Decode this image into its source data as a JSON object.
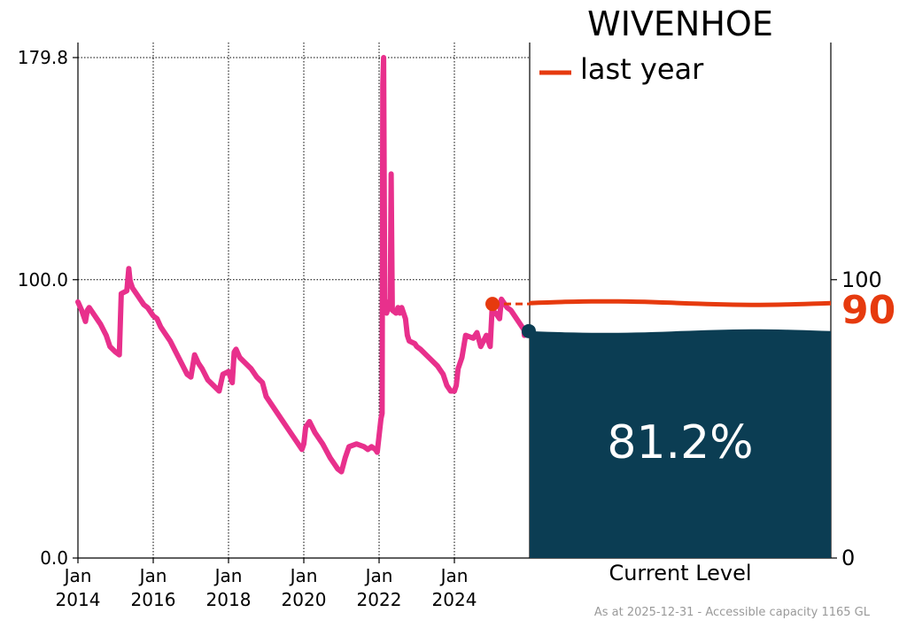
{
  "chart_data": {
    "type": "line",
    "title": "WIVENHOE",
    "y_ticks": [
      "0.0",
      "100.0",
      "179.8"
    ],
    "x_ticks": [
      {
        "line1": "Jan",
        "line2": "2014"
      },
      {
        "line1": "Jan",
        "line2": "2016"
      },
      {
        "line1": "Jan",
        "line2": "2018"
      },
      {
        "line1": "Jan",
        "line2": "2020"
      },
      {
        "line1": "Jan",
        "line2": "2022"
      },
      {
        "line1": "Jan",
        "line2": "2024"
      }
    ],
    "ylim": [
      0,
      179.8
    ],
    "xlim": [
      2014.0,
      2026.0
    ],
    "grid": true,
    "series": [
      {
        "color": "#e8308c",
        "x": [
          2014.0,
          2014.1,
          2014.2,
          2014.25,
          2014.3,
          2014.45,
          2014.6,
          2014.75,
          2014.85,
          2015.0,
          2015.1,
          2015.15,
          2015.3,
          2015.35,
          2015.38,
          2015.4,
          2015.45,
          2015.6,
          2015.75,
          2015.85,
          2015.95,
          2016.0,
          2016.1,
          2016.2,
          2016.3,
          2016.45,
          2016.6,
          2016.75,
          2016.9,
          2017.0,
          2017.1,
          2017.2,
          2017.3,
          2017.45,
          2017.6,
          2017.75,
          2017.85,
          2018.0,
          2018.1,
          2018.15,
          2018.2,
          2018.3,
          2018.45,
          2018.6,
          2018.75,
          2018.9,
          2019.0,
          2019.2,
          2019.4,
          2019.6,
          2019.8,
          2019.95,
          2020.0,
          2020.05,
          2020.15,
          2020.3,
          2020.5,
          2020.7,
          2020.9,
          2021.0,
          2021.1,
          2021.2,
          2021.4,
          2021.6,
          2021.7,
          2021.8,
          2021.9,
          2021.95,
          2022.0,
          2022.05,
          2022.08,
          2022.1,
          2022.12,
          2022.15,
          2022.2,
          2022.3,
          2022.32,
          2022.35,
          2022.45,
          2022.5,
          2022.55,
          2022.6,
          2022.7,
          2022.75,
          2022.8,
          2022.95,
          2023.0,
          2023.1,
          2023.25,
          2023.4,
          2023.55,
          2023.7,
          2023.8,
          2023.9,
          2024.0,
          2024.05,
          2024.1,
          2024.2,
          2024.3,
          2024.5,
          2024.6,
          2024.7,
          2024.85,
          2024.95,
          2025.0,
          2025.1,
          2025.2,
          2025.25,
          2025.3,
          2025.4,
          2025.5,
          2025.6,
          2025.7,
          2025.85,
          2026.0
        ],
        "y": [
          92,
          89,
          85,
          89,
          90,
          87,
          84,
          80,
          76,
          74,
          73,
          95,
          96,
          104,
          100,
          99,
          97,
          94,
          91,
          90,
          88,
          87,
          86,
          83,
          81,
          78,
          74,
          70,
          66,
          65,
          73,
          70,
          68,
          64,
          62,
          60,
          66,
          67,
          63,
          74,
          75,
          72,
          70,
          68,
          65,
          63,
          58,
          54,
          50,
          46,
          42,
          39,
          41,
          47,
          49,
          45,
          41,
          36,
          32,
          31,
          36,
          40,
          41,
          40,
          39,
          40,
          39,
          38,
          44,
          50,
          52,
          170,
          179.8,
          90,
          88,
          93,
          138,
          89,
          88,
          90,
          88,
          90,
          86,
          80,
          78,
          77,
          76,
          75,
          73,
          71,
          69,
          66,
          62,
          60,
          60,
          62,
          68,
          72,
          80,
          79,
          81,
          76,
          80,
          76,
          89,
          88,
          86,
          93,
          92,
          90,
          89,
          87,
          85,
          82,
          80
        ]
      }
    ],
    "last_year_value": 90,
    "current_level_pct": 81.2,
    "panel": {
      "percent_label": "81.2%",
      "last_year_label": "90",
      "sublabel": "Current Level",
      "right_ticks": [
        "0",
        "100"
      ]
    },
    "legend": {
      "label": "last year",
      "position": "top-left of panel"
    },
    "footnote": "As at 2025-12-31 - Accessible capacity 1165 GL",
    "colors": {
      "line": "#e8308c",
      "last_year": "#e63a0e",
      "water": "#0b3d53"
    }
  }
}
